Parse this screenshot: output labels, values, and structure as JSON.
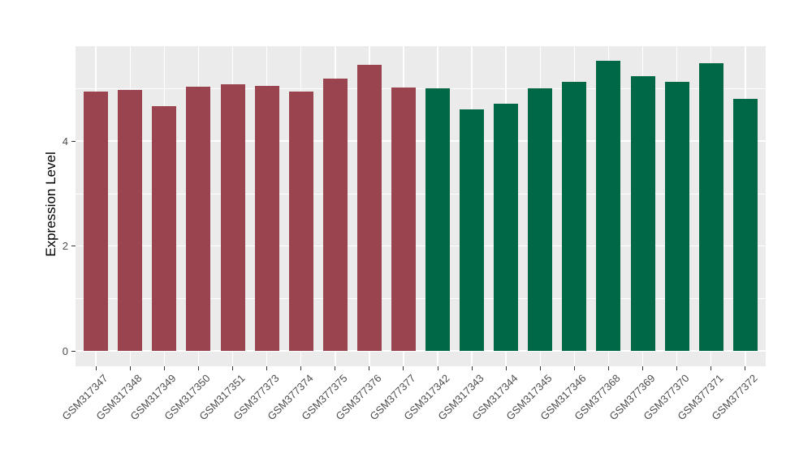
{
  "chart_data": {
    "type": "bar",
    "title": "",
    "xlabel": "",
    "ylabel": "Expression Level",
    "ylim": [
      0,
      5.81
    ],
    "yticks": [
      0,
      2,
      4
    ],
    "minor_gridlines": [
      1,
      3,
      5
    ],
    "grid": true,
    "legend_position": "none",
    "panel_background": "#EBEBEB",
    "gridline_color": "#FFFFFF",
    "axis_text_color": "#4D4D4D",
    "group_colors": {
      "group1": "#9A4450",
      "group2": "#016847"
    },
    "bars": [
      {
        "label": "GSM317347",
        "value": 4.95,
        "group": "group1"
      },
      {
        "label": "GSM317348",
        "value": 4.97,
        "group": "group1"
      },
      {
        "label": "GSM317349",
        "value": 4.67,
        "group": "group1"
      },
      {
        "label": "GSM317350",
        "value": 5.04,
        "group": "group1"
      },
      {
        "label": "GSM317351",
        "value": 5.08,
        "group": "group1"
      },
      {
        "label": "GSM377373",
        "value": 5.06,
        "group": "group1"
      },
      {
        "label": "GSM377374",
        "value": 4.95,
        "group": "group1"
      },
      {
        "label": "GSM377375",
        "value": 5.19,
        "group": "group1"
      },
      {
        "label": "GSM377376",
        "value": 5.45,
        "group": "group1"
      },
      {
        "label": "GSM377377",
        "value": 5.03,
        "group": "group1"
      },
      {
        "label": "GSM317342",
        "value": 5.01,
        "group": "group2"
      },
      {
        "label": "GSM317343",
        "value": 4.61,
        "group": "group2"
      },
      {
        "label": "GSM317344",
        "value": 4.72,
        "group": "group2"
      },
      {
        "label": "GSM317345",
        "value": 5.01,
        "group": "group2"
      },
      {
        "label": "GSM317346",
        "value": 5.13,
        "group": "group2"
      },
      {
        "label": "GSM377368",
        "value": 5.53,
        "group": "group2"
      },
      {
        "label": "GSM377369",
        "value": 5.24,
        "group": "group2"
      },
      {
        "label": "GSM377370",
        "value": 5.13,
        "group": "group2"
      },
      {
        "label": "GSM377371",
        "value": 5.49,
        "group": "group2"
      },
      {
        "label": "GSM377372",
        "value": 4.81,
        "group": "group2"
      }
    ]
  }
}
